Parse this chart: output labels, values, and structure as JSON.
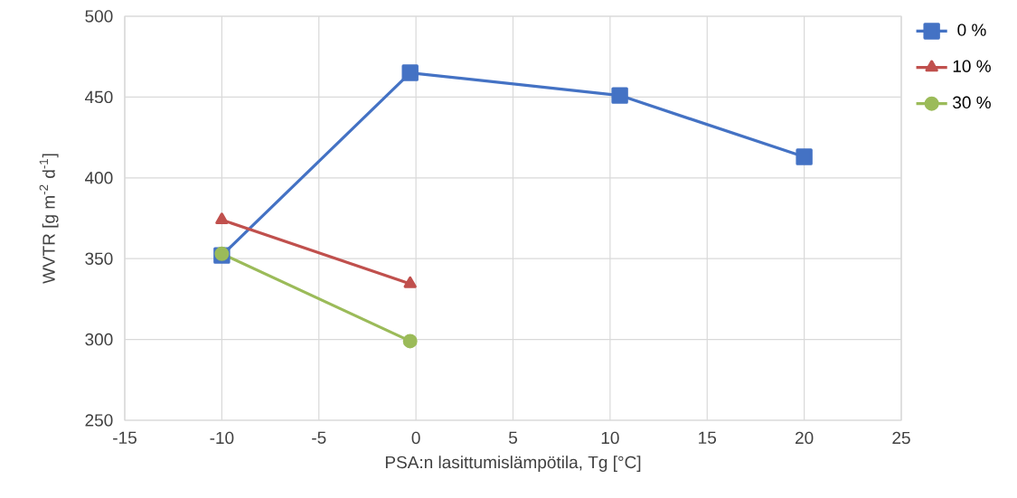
{
  "chart_data": {
    "type": "line",
    "xlabel": "PSA:n lasittumislämpötila, Tg [°C]",
    "ylabel": "WVTR [g m$^{-2}$ d$^{-1}$]",
    "xlim": [
      -15,
      25
    ],
    "xticks": [
      -15,
      -10,
      -5,
      0,
      5,
      10,
      15,
      20,
      25
    ],
    "ylim": [
      250,
      500
    ],
    "yticks": [
      250,
      300,
      350,
      400,
      450,
      500
    ],
    "grid": true,
    "legend": "right",
    "line_style": "solid",
    "series": [
      {
        "name": "0 %",
        "color": "#4472c4",
        "marker": "square",
        "x": [
          -10,
          -0.3,
          10.5,
          20
        ],
        "values": [
          352,
          465,
          451,
          413
        ]
      },
      {
        "name": "10 %",
        "color": "#c0504d",
        "marker": "triangle",
        "x": [
          -10,
          -0.3
        ],
        "values": [
          374,
          334.5
        ]
      },
      {
        "name": "30 %",
        "color": "#9bbb59",
        "marker": "circle",
        "x": [
          -10,
          -0.3
        ],
        "values": [
          353,
          299
        ]
      }
    ]
  }
}
